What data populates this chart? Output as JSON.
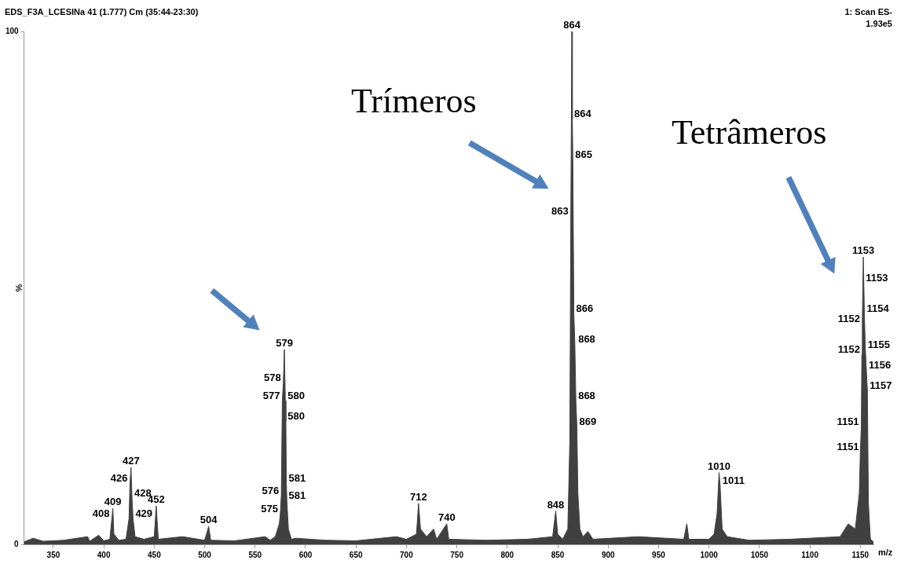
{
  "chart_data": {
    "type": "area",
    "title": "EDS_F3A_LCESINa 41 (1.777) Cm (35:44-23:30)",
    "subtitle": "1: Scan ES-",
    "xlabel": "m/z",
    "ylabel": "%",
    "xlim": [
      321,
      1163
    ],
    "xticks": [
      350,
      400,
      450,
      500,
      550,
      600,
      650,
      700,
      750,
      800,
      850,
      900,
      950,
      1000,
      1050,
      1100,
      1150
    ],
    "ylim": [
      0,
      100
    ],
    "yticks": [
      0,
      100
    ],
    "series": [
      {
        "color": "#404040",
        "x": [
          321,
          330,
          340,
          360,
          384,
          386,
          395,
          400,
          406,
          408,
          409,
          410,
          415,
          422,
          425,
          426,
          427,
          428,
          429,
          431,
          440,
          450,
          452,
          454,
          478,
          500,
          504,
          506,
          530,
          560,
          565,
          570,
          574,
          575,
          576,
          577,
          578,
          579,
          580,
          580.5,
          581,
          581.5,
          583,
          586,
          590,
          620,
          650,
          690,
          700,
          710,
          712,
          714,
          720,
          727,
          730,
          740,
          742,
          780,
          820,
          845,
          848,
          850,
          855,
          860,
          862,
          863,
          864,
          864.5,
          865,
          866,
          867,
          868,
          869,
          870,
          872,
          875,
          880,
          885,
          930,
          975,
          978,
          980,
          1000,
          1005,
          1008,
          1010,
          1011,
          1013,
          1018,
          1040,
          1080,
          1130,
          1138,
          1145,
          1149,
          1150,
          1150.5,
          1151,
          1151.5,
          1152,
          1152.5,
          1153,
          1154,
          1155,
          1156,
          1157,
          1158,
          1160,
          1163
        ],
        "values": [
          0.5,
          1.2,
          0.6,
          0.8,
          1.5,
          0.6,
          1.8,
          0.7,
          1,
          5,
          7,
          2,
          0.8,
          1,
          5,
          12,
          15,
          9,
          5,
          1.5,
          1,
          1.5,
          7.5,
          1,
          1.5,
          0.8,
          3.5,
          0.8,
          0.7,
          1.5,
          0.8,
          1.5,
          4,
          6,
          9.5,
          28,
          31.5,
          38,
          28,
          24,
          12,
          8.5,
          3,
          1,
          1.2,
          0.8,
          0.7,
          1.5,
          1,
          2,
          8,
          3,
          1.5,
          3,
          1,
          4,
          1,
          0.8,
          1,
          1.5,
          6.5,
          2,
          1,
          3,
          20,
          64,
          100,
          83,
          75,
          45,
          39,
          28,
          23,
          10,
          3,
          1.5,
          2.5,
          1,
          1.5,
          1,
          4,
          1,
          1,
          2,
          6,
          14,
          11.5,
          3,
          1.5,
          0.8,
          1,
          1.5,
          4,
          3,
          10,
          18,
          18,
          23,
          37,
          43,
          51,
          56,
          45,
          38,
          34,
          30,
          8,
          1,
          0.5
        ]
      }
    ],
    "annotations": [
      "1.93e5",
      "Trímeros",
      "Tetrâmeros",
      {
        "text": "408",
        "x": 408,
        "y": 5
      },
      {
        "text": "409",
        "x": 409,
        "y": 7
      },
      {
        "text": "426",
        "x": 426,
        "y": 12
      },
      {
        "text": "427",
        "x": 427,
        "y": 15
      },
      {
        "text": "428",
        "x": 428,
        "y": 9
      },
      {
        "text": "429",
        "x": 429,
        "y": 5
      },
      {
        "text": "452",
        "x": 452,
        "y": 7.5
      },
      {
        "text": "504",
        "x": 504,
        "y": 3.5
      },
      {
        "text": "575",
        "x": 575,
        "y": 6
      },
      {
        "text": "576",
        "x": 576,
        "y": 9.5
      },
      {
        "text": "577",
        "x": 577,
        "y": 28
      },
      {
        "text": "578",
        "x": 578,
        "y": 31.5
      },
      {
        "text": "579",
        "x": 579,
        "y": 38
      },
      {
        "text": "580",
        "x": 580,
        "y": 28
      },
      {
        "text": "580",
        "x": 580,
        "y": 24
      },
      {
        "text": "581",
        "x": 581,
        "y": 12
      },
      {
        "text": "581",
        "x": 581,
        "y": 8.5
      },
      {
        "text": "712",
        "x": 712,
        "y": 8
      },
      {
        "text": "740",
        "x": 740,
        "y": 4
      },
      {
        "text": "848",
        "x": 848,
        "y": 6.5
      },
      {
        "text": "863",
        "x": 863,
        "y": 64
      },
      {
        "text": "864",
        "x": 864,
        "y": 100
      },
      {
        "text": "864",
        "x": 864,
        "y": 83
      },
      {
        "text": "865",
        "x": 865,
        "y": 75
      },
      {
        "text": "866",
        "x": 866,
        "y": 45
      },
      {
        "text": "868",
        "x": 868,
        "y": 39
      },
      {
        "text": "868",
        "x": 868,
        "y": 28
      },
      {
        "text": "869",
        "x": 869,
        "y": 23
      },
      {
        "text": "1010",
        "x": 1010,
        "y": 14
      },
      {
        "text": "1011",
        "x": 1011,
        "y": 11.5
      },
      {
        "text": "1151",
        "x": 1151,
        "y": 18
      },
      {
        "text": "1151",
        "x": 1151,
        "y": 23
      },
      {
        "text": "1152",
        "x": 1152,
        "y": 37
      },
      {
        "text": "1152",
        "x": 1152,
        "y": 43
      },
      {
        "text": "1153",
        "x": 1153,
        "y": 51
      },
      {
        "text": "1153",
        "x": 1153,
        "y": 56
      },
      {
        "text": "1154",
        "x": 1154,
        "y": 45
      },
      {
        "text": "1155",
        "x": 1155,
        "y": 38
      },
      {
        "text": "1156",
        "x": 1156,
        "y": 34
      },
      {
        "text": "1157",
        "x": 1157,
        "y": 30
      }
    ]
  }
}
